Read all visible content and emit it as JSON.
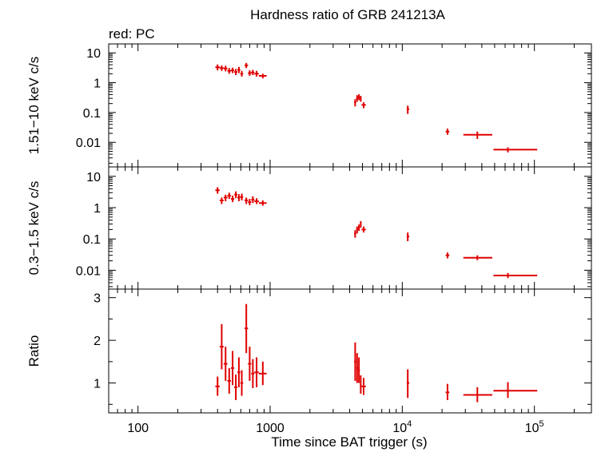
{
  "chart_data": {
    "type": "scatter",
    "title": "Hardness ratio of GRB 241213A",
    "subtitle": "red: PC",
    "xlabel": "Time since BAT trigger (s)",
    "x_scale": "log",
    "xlim": [
      60,
      270000
    ],
    "x_tick_labels": [
      {
        "v": 100,
        "text": "100"
      },
      {
        "v": 1000,
        "text": "1000"
      },
      {
        "v": 10000,
        "base": "10",
        "exp": "4"
      },
      {
        "v": 100000,
        "base": "10",
        "exp": "5"
      }
    ],
    "series_color": "#e00000",
    "panels": [
      {
        "ylabel": "1.51−10 keV c/s",
        "y_scale": "log",
        "ylim": [
          0.0015,
          20
        ],
        "y_tick_labels": [
          {
            "v": 10,
            "text": "10"
          },
          {
            "v": 1,
            "text": "1"
          },
          {
            "v": 0.1,
            "text": "0.1"
          },
          {
            "v": 0.01,
            "text": "0.01"
          }
        ],
        "points": [
          {
            "x": 400,
            "xlo": 385,
            "xhi": 415,
            "y": 3.3,
            "ylo": 2.6,
            "yhi": 4.1
          },
          {
            "x": 430,
            "xlo": 415,
            "xhi": 445,
            "y": 3.1,
            "ylo": 2.5,
            "yhi": 3.8
          },
          {
            "x": 460,
            "xlo": 445,
            "xhi": 475,
            "y": 3.0,
            "ylo": 2.4,
            "yhi": 3.7
          },
          {
            "x": 490,
            "xlo": 475,
            "xhi": 505,
            "y": 2.5,
            "ylo": 2.0,
            "yhi": 3.1
          },
          {
            "x": 520,
            "xlo": 505,
            "xhi": 535,
            "y": 2.6,
            "ylo": 2.1,
            "yhi": 3.2
          },
          {
            "x": 550,
            "xlo": 535,
            "xhi": 565,
            "y": 2.3,
            "ylo": 1.8,
            "yhi": 2.9
          },
          {
            "x": 580,
            "xlo": 565,
            "xhi": 595,
            "y": 2.7,
            "ylo": 2.1,
            "yhi": 3.4
          },
          {
            "x": 610,
            "xlo": 595,
            "xhi": 625,
            "y": 2.0,
            "ylo": 1.6,
            "yhi": 2.5
          },
          {
            "x": 660,
            "xlo": 640,
            "xhi": 680,
            "y": 3.8,
            "ylo": 3.1,
            "yhi": 4.6
          },
          {
            "x": 700,
            "xlo": 680,
            "xhi": 720,
            "y": 2.1,
            "ylo": 1.7,
            "yhi": 2.6
          },
          {
            "x": 740,
            "xlo": 720,
            "xhi": 760,
            "y": 2.2,
            "ylo": 1.8,
            "yhi": 2.7
          },
          {
            "x": 790,
            "xlo": 760,
            "xhi": 820,
            "y": 2.0,
            "ylo": 1.6,
            "yhi": 2.5
          },
          {
            "x": 880,
            "xlo": 820,
            "xhi": 940,
            "y": 1.7,
            "ylo": 1.4,
            "yhi": 2.0
          },
          {
            "x": 4400,
            "xlo": 4320,
            "xhi": 4480,
            "y": 0.22,
            "ylo": 0.16,
            "yhi": 0.28
          },
          {
            "x": 4550,
            "xlo": 4480,
            "xhi": 4620,
            "y": 0.3,
            "ylo": 0.23,
            "yhi": 0.38
          },
          {
            "x": 4700,
            "xlo": 4620,
            "xhi": 4780,
            "y": 0.33,
            "ylo": 0.26,
            "yhi": 0.41
          },
          {
            "x": 4850,
            "xlo": 4780,
            "xhi": 4920,
            "y": 0.29,
            "ylo": 0.23,
            "yhi": 0.36
          },
          {
            "x": 5100,
            "xlo": 4920,
            "xhi": 5300,
            "y": 0.18,
            "ylo": 0.14,
            "yhi": 0.22
          },
          {
            "x": 11000,
            "xlo": 10800,
            "xhi": 11300,
            "y": 0.13,
            "ylo": 0.09,
            "yhi": 0.17
          },
          {
            "x": 22000,
            "xlo": 21300,
            "xhi": 22700,
            "y": 0.023,
            "ylo": 0.018,
            "yhi": 0.029
          },
          {
            "x": 37000,
            "xlo": 29000,
            "xhi": 48000,
            "y": 0.018,
            "ylo": 0.013,
            "yhi": 0.023
          },
          {
            "x": 63000,
            "xlo": 49000,
            "xhi": 105000,
            "y": 0.0057,
            "ylo": 0.0046,
            "yhi": 0.0068
          }
        ]
      },
      {
        "ylabel": "0.3−1.5 keV c/s",
        "y_scale": "log",
        "ylim": [
          0.0025,
          20
        ],
        "y_tick_labels": [
          {
            "v": 10,
            "text": "10"
          },
          {
            "v": 1,
            "text": "1"
          },
          {
            "v": 0.1,
            "text": "0.1"
          },
          {
            "v": 0.01,
            "text": "0.01"
          }
        ],
        "points": [
          {
            "x": 400,
            "xlo": 385,
            "xhi": 415,
            "y": 3.6,
            "ylo": 2.8,
            "yhi": 4.5
          },
          {
            "x": 430,
            "xlo": 415,
            "xhi": 445,
            "y": 1.7,
            "ylo": 1.3,
            "yhi": 2.1
          },
          {
            "x": 460,
            "xlo": 445,
            "xhi": 475,
            "y": 2.1,
            "ylo": 1.6,
            "yhi": 2.6
          },
          {
            "x": 490,
            "xlo": 475,
            "xhi": 505,
            "y": 2.4,
            "ylo": 1.9,
            "yhi": 3.0
          },
          {
            "x": 520,
            "xlo": 505,
            "xhi": 535,
            "y": 1.9,
            "ylo": 1.5,
            "yhi": 2.4
          },
          {
            "x": 550,
            "xlo": 535,
            "xhi": 565,
            "y": 2.6,
            "ylo": 2.0,
            "yhi": 3.3
          },
          {
            "x": 580,
            "xlo": 565,
            "xhi": 595,
            "y": 2.1,
            "ylo": 1.6,
            "yhi": 2.7
          },
          {
            "x": 610,
            "xlo": 595,
            "xhi": 625,
            "y": 2.2,
            "ylo": 1.7,
            "yhi": 2.8
          },
          {
            "x": 660,
            "xlo": 640,
            "xhi": 680,
            "y": 1.7,
            "ylo": 1.3,
            "yhi": 2.1
          },
          {
            "x": 700,
            "xlo": 680,
            "xhi": 720,
            "y": 1.5,
            "ylo": 1.2,
            "yhi": 1.9
          },
          {
            "x": 740,
            "xlo": 720,
            "xhi": 760,
            "y": 1.8,
            "ylo": 1.4,
            "yhi": 2.3
          },
          {
            "x": 790,
            "xlo": 760,
            "xhi": 820,
            "y": 1.6,
            "ylo": 1.3,
            "yhi": 2.0
          },
          {
            "x": 880,
            "xlo": 820,
            "xhi": 940,
            "y": 1.4,
            "ylo": 1.15,
            "yhi": 1.7
          },
          {
            "x": 4400,
            "xlo": 4320,
            "xhi": 4480,
            "y": 0.15,
            "ylo": 0.11,
            "yhi": 0.19
          },
          {
            "x": 4550,
            "xlo": 4480,
            "xhi": 4620,
            "y": 0.2,
            "ylo": 0.15,
            "yhi": 0.25
          },
          {
            "x": 4700,
            "xlo": 4620,
            "xhi": 4780,
            "y": 0.23,
            "ylo": 0.18,
            "yhi": 0.29
          },
          {
            "x": 4850,
            "xlo": 4780,
            "xhi": 4920,
            "y": 0.3,
            "ylo": 0.23,
            "yhi": 0.37
          },
          {
            "x": 5100,
            "xlo": 4920,
            "xhi": 5300,
            "y": 0.2,
            "ylo": 0.16,
            "yhi": 0.25
          },
          {
            "x": 11000,
            "xlo": 10800,
            "xhi": 11300,
            "y": 0.12,
            "ylo": 0.085,
            "yhi": 0.16
          },
          {
            "x": 22000,
            "xlo": 21300,
            "xhi": 22700,
            "y": 0.03,
            "ylo": 0.024,
            "yhi": 0.037
          },
          {
            "x": 37000,
            "xlo": 29000,
            "xhi": 48000,
            "y": 0.025,
            "ylo": 0.021,
            "yhi": 0.03
          },
          {
            "x": 63000,
            "xlo": 49000,
            "xhi": 105000,
            "y": 0.0068,
            "ylo": 0.0056,
            "yhi": 0.0082
          }
        ]
      },
      {
        "ylabel": "Ratio",
        "y_scale": "linear",
        "ylim": [
          0.3,
          3.2
        ],
        "y_tick_labels": [
          {
            "v": 3,
            "text": "3"
          },
          {
            "v": 2,
            "text": "2"
          },
          {
            "v": 1,
            "text": "1"
          }
        ],
        "points": [
          {
            "x": 400,
            "xlo": 385,
            "xhi": 415,
            "y": 0.92,
            "ylo": 0.7,
            "yhi": 1.15
          },
          {
            "x": 430,
            "xlo": 415,
            "xhi": 445,
            "y": 1.85,
            "ylo": 1.32,
            "yhi": 2.38
          },
          {
            "x": 460,
            "xlo": 445,
            "xhi": 475,
            "y": 1.45,
            "ylo": 1.05,
            "yhi": 1.85
          },
          {
            "x": 490,
            "xlo": 475,
            "xhi": 505,
            "y": 1.05,
            "ylo": 0.75,
            "yhi": 1.35
          },
          {
            "x": 520,
            "xlo": 505,
            "xhi": 535,
            "y": 1.35,
            "ylo": 0.95,
            "yhi": 1.75
          },
          {
            "x": 550,
            "xlo": 535,
            "xhi": 565,
            "y": 0.9,
            "ylo": 0.6,
            "yhi": 1.2
          },
          {
            "x": 580,
            "xlo": 565,
            "xhi": 595,
            "y": 1.25,
            "ylo": 0.9,
            "yhi": 1.6
          },
          {
            "x": 610,
            "xlo": 595,
            "xhi": 625,
            "y": 1.0,
            "ylo": 0.7,
            "yhi": 1.3
          },
          {
            "x": 660,
            "xlo": 640,
            "xhi": 680,
            "y": 2.28,
            "ylo": 1.7,
            "yhi": 2.85
          },
          {
            "x": 700,
            "xlo": 680,
            "xhi": 720,
            "y": 1.45,
            "ylo": 1.05,
            "yhi": 1.85
          },
          {
            "x": 740,
            "xlo": 720,
            "xhi": 760,
            "y": 1.22,
            "ylo": 0.88,
            "yhi": 1.56
          },
          {
            "x": 790,
            "xlo": 760,
            "xhi": 820,
            "y": 1.25,
            "ylo": 0.9,
            "yhi": 1.6
          },
          {
            "x": 880,
            "xlo": 820,
            "xhi": 940,
            "y": 1.22,
            "ylo": 0.95,
            "yhi": 1.5
          },
          {
            "x": 4400,
            "xlo": 4320,
            "xhi": 4480,
            "y": 1.5,
            "ylo": 1.05,
            "yhi": 1.95
          },
          {
            "x": 4550,
            "xlo": 4480,
            "xhi": 4620,
            "y": 1.35,
            "ylo": 1.0,
            "yhi": 1.7
          },
          {
            "x": 4700,
            "xlo": 4620,
            "xhi": 4780,
            "y": 1.3,
            "ylo": 1.0,
            "yhi": 1.6
          },
          {
            "x": 4850,
            "xlo": 4780,
            "xhi": 4920,
            "y": 0.95,
            "ylo": 0.75,
            "yhi": 1.18
          },
          {
            "x": 5100,
            "xlo": 4920,
            "xhi": 5300,
            "y": 0.92,
            "ylo": 0.72,
            "yhi": 1.12
          },
          {
            "x": 11000,
            "xlo": 10800,
            "xhi": 11300,
            "y": 1.0,
            "ylo": 0.65,
            "yhi": 1.32
          },
          {
            "x": 22000,
            "xlo": 21300,
            "xhi": 22700,
            "y": 0.78,
            "ylo": 0.6,
            "yhi": 0.98
          },
          {
            "x": 37000,
            "xlo": 29000,
            "xhi": 48000,
            "y": 0.72,
            "ylo": 0.55,
            "yhi": 0.9
          },
          {
            "x": 63000,
            "xlo": 49000,
            "xhi": 105000,
            "y": 0.82,
            "ylo": 0.65,
            "yhi": 1.02
          }
        ]
      }
    ]
  }
}
